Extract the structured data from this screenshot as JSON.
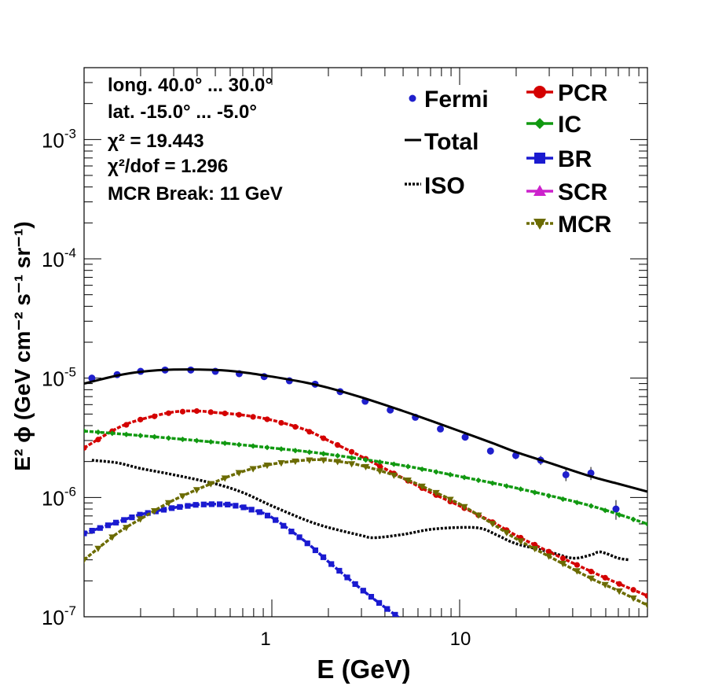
{
  "chart_data": {
    "type": "line",
    "xlabel": "E (GeV)",
    "ylabel": "E² ϕ (GeV cm⁻² s⁻¹ sr⁻¹)",
    "xscale": "log",
    "yscale": "log",
    "xlim": [
      0.1,
      100
    ],
    "ylim": [
      1e-07,
      0.004
    ],
    "grid": false,
    "x_tick_labels": [
      {
        "value": 1,
        "label": "1"
      },
      {
        "value": 10,
        "label": "10"
      }
    ],
    "y_tick_labels": [
      {
        "value": 1e-07,
        "base": "10",
        "exp": "-7"
      },
      {
        "value": 1e-06,
        "base": "10",
        "exp": "-6"
      },
      {
        "value": 1e-05,
        "base": "10",
        "exp": "-5"
      },
      {
        "value": 0.0001,
        "base": "10",
        "exp": "-4"
      },
      {
        "value": 0.001,
        "base": "10",
        "exp": "-3"
      }
    ],
    "info_lines": [
      "long. 40.0° ... 30.0°",
      "lat. -15.0° ... -5.0°",
      "χ² = 19.443",
      "χ²/dof = 1.296",
      "MCR Break: 11 GeV"
    ],
    "legend_left_placement": "top-center",
    "legend_right_placement": "top-right",
    "series": [
      {
        "name": "Fermi",
        "kind": "points",
        "color": "#1f1fcc",
        "x": [
          0.11,
          0.15,
          0.2,
          0.27,
          0.37,
          0.5,
          0.67,
          0.91,
          1.24,
          1.7,
          2.31,
          3.14,
          4.27,
          5.81,
          7.9,
          10.7,
          14.6,
          19.9,
          27.0,
          36.8,
          50.0,
          68.0
        ],
        "y": [
          1e-05,
          1.07e-05,
          1.14e-05,
          1.17e-05,
          1.17e-05,
          1.14e-05,
          1.09e-05,
          1.03e-05,
          9.5e-06,
          8.9e-06,
          7.7e-06,
          6.4e-06,
          5.4e-06,
          4.7e-06,
          3.75e-06,
          3.2e-06,
          2.45e-06,
          2.25e-06,
          2.05e-06,
          1.55e-06,
          1.6e-06,
          8e-07
        ],
        "yerr": [
          2e-07,
          2e-07,
          2e-07,
          2e-07,
          2e-07,
          2e-07,
          2e-07,
          2e-07,
          2e-07,
          2e-07,
          2e-07,
          1.5e-07,
          1.5e-07,
          1.5e-07,
          1.5e-07,
          1.5e-07,
          1.6e-07,
          1.6e-07,
          1.8e-07,
          1.8e-07,
          2e-07,
          1.5e-07
        ]
      },
      {
        "name": "Total",
        "kind": "line",
        "color": "#000000",
        "x": [
          0.1,
          0.15,
          0.2,
          0.3,
          0.5,
          0.7,
          1,
          1.5,
          2,
          3,
          5,
          7,
          10,
          15,
          20,
          30,
          50,
          70,
          100
        ],
        "y": [
          9e-06,
          1.05e-05,
          1.13e-05,
          1.18e-05,
          1.17e-05,
          1.12e-05,
          1.03e-05,
          9.2e-06,
          8.3e-06,
          6.9e-06,
          5.3e-06,
          4.4e-06,
          3.6e-06,
          2.85e-06,
          2.4e-06,
          1.95e-06,
          1.5e-06,
          1.3e-06,
          1.12e-06
        ]
      },
      {
        "name": "ISO",
        "kind": "line",
        "color": "#000000",
        "x": [
          0.11,
          0.15,
          0.2,
          0.3,
          0.5,
          0.7,
          1,
          1.5,
          2,
          3,
          3.5,
          5,
          7,
          10,
          13,
          16,
          20,
          30,
          40,
          50,
          55,
          60,
          70,
          80
        ],
        "y": [
          2.05e-06,
          1.95e-06,
          1.75e-06,
          1.55e-06,
          1.3e-06,
          1.1e-06,
          8.5e-07,
          6.5e-07,
          5.6e-07,
          4.8e-07,
          4.6e-07,
          4.9e-07,
          5.4e-07,
          5.6e-07,
          5.5e-07,
          4.8e-07,
          4.1e-07,
          3.5e-07,
          3.1e-07,
          3.3e-07,
          3.5e-07,
          3.4e-07,
          3.1e-07,
          3e-07
        ]
      },
      {
        "name": "PCR",
        "kind": "marked-line",
        "marker": "circle",
        "color": "#d40000",
        "x": [
          0.1,
          0.15,
          0.2,
          0.3,
          0.4,
          0.5,
          0.7,
          1,
          1.5,
          2,
          3,
          5,
          7,
          10,
          15,
          20,
          30,
          50,
          70,
          100
        ],
        "y": [
          2.6e-06,
          3.8e-06,
          4.5e-06,
          5.2e-06,
          5.3e-06,
          5.15e-06,
          4.9e-06,
          4.45e-06,
          3.7e-06,
          3e-06,
          2.2e-06,
          1.45e-06,
          1.1e-06,
          8.5e-07,
          6.2e-07,
          4.8e-07,
          3.5e-07,
          2.4e-07,
          1.9e-07,
          1.5e-07
        ]
      },
      {
        "name": "IC",
        "kind": "marked-line",
        "marker": "diamond",
        "color": "#119911",
        "x": [
          0.1,
          0.2,
          0.5,
          1,
          2,
          5,
          10,
          20,
          50,
          100
        ],
        "y": [
          3.6e-06,
          3.3e-06,
          2.9e-06,
          2.6e-06,
          2.3e-06,
          1.85e-06,
          1.5e-06,
          1.2e-06,
          8.5e-07,
          6e-07
        ]
      },
      {
        "name": "BR",
        "kind": "marked-line",
        "marker": "square",
        "color": "#1a1ad0",
        "x": [
          0.1,
          0.15,
          0.2,
          0.3,
          0.4,
          0.5,
          0.6,
          0.7,
          0.85,
          1,
          1.5,
          2,
          3,
          4,
          5
        ],
        "y": [
          5e-07,
          6.2e-07,
          7.2e-07,
          8.2e-07,
          8.7e-07,
          8.8e-07,
          8.7e-07,
          8.3e-07,
          7.6e-07,
          6.8e-07,
          4.3e-07,
          2.9e-07,
          1.7e-07,
          1.2e-07,
          9.3e-08
        ]
      },
      {
        "name": "SCR",
        "kind": "marked-line",
        "marker": "triangle-up",
        "color": "#cc22cc",
        "x": [],
        "y": []
      },
      {
        "name": "MCR",
        "kind": "marked-line",
        "marker": "triangle-down",
        "color": "#6b6b00",
        "x": [
          0.1,
          0.15,
          0.2,
          0.3,
          0.5,
          0.7,
          1,
          1.5,
          2,
          3,
          5,
          7,
          10,
          15,
          20,
          30,
          50,
          70,
          100
        ],
        "y": [
          3e-07,
          5e-07,
          6.6e-07,
          9.5e-07,
          1.35e-06,
          1.65e-06,
          1.9e-06,
          2.05e-06,
          2.05e-06,
          1.85e-06,
          1.45e-06,
          1.15e-06,
          8.8e-07,
          6e-07,
          4.5e-07,
          3.2e-07,
          2.1e-07,
          1.65e-07,
          1.25e-07
        ]
      }
    ]
  }
}
